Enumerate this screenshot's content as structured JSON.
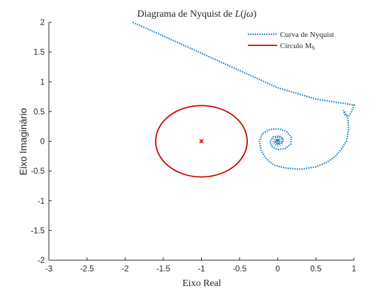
{
  "chart_data": {
    "type": "line",
    "title": "Diagrama de Nyquist de L(jω)",
    "xlabel": "Eixo Real",
    "ylabel": "Eixo Imaginário",
    "xlim": [
      -3,
      1
    ],
    "ylim": [
      -2,
      2
    ],
    "xticks": [
      -3,
      -2.5,
      -2,
      -1.5,
      -1,
      -0.5,
      0,
      0.5,
      1
    ],
    "yticks": [
      -2,
      -1.5,
      -1,
      -0.5,
      0,
      0.5,
      1,
      1.5,
      2
    ],
    "xtick_labels": [
      "-3",
      "-2.5",
      "-2",
      "-1.5",
      "-1",
      "-0.5",
      "0",
      "0.5",
      "1"
    ],
    "ytick_labels": [
      "-2",
      "-1.5",
      "-1",
      "-0.5",
      "0",
      "0.5",
      "1",
      "1.5",
      "2"
    ],
    "grid": false,
    "legend_position": "top-right",
    "series": [
      {
        "name": "Curva de Nyquist",
        "color": "#0072BD",
        "style": "dotted",
        "x": [
          -1.9,
          -1.5,
          -1.0,
          -0.5,
          0.0,
          0.5,
          0.8,
          0.95,
          1.0
        ],
        "y": [
          2.0,
          1.77,
          1.48,
          1.19,
          0.9,
          0.71,
          0.65,
          0.62,
          0.61
        ]
      },
      {
        "name": "Círculo M",
        "color": "#D00000",
        "style": "solid",
        "center": [
          -1,
          0
        ],
        "radius_x": 0.6,
        "radius_y": 0.6
      }
    ],
    "marker": {
      "x": -1,
      "y": 0,
      "symbol": "x",
      "color": "#D00000"
    },
    "legend_entry_1": "Curva de Nyquist",
    "legend_entry_2_main": "Círculo M",
    "legend_entry_2_sub": "S"
  }
}
